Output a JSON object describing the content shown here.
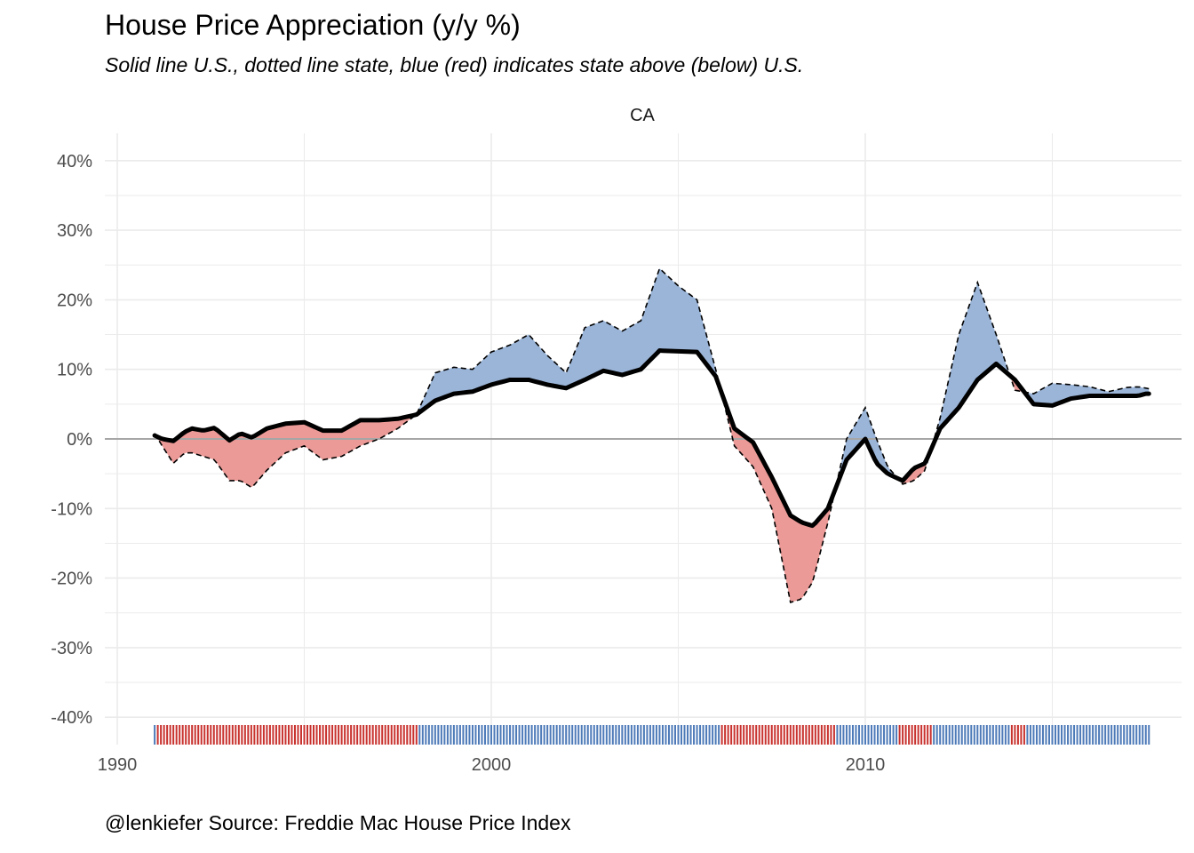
{
  "title": "House Price Appreciation (y/y %)",
  "subtitle": "Solid line U.S., dotted line state, blue (red) indicates state above (below) U.S.",
  "caption": "@lenkiefer Source: Freddie Mac House Price Index",
  "chart_data": {
    "type": "area",
    "facet": "CA",
    "ylim": [
      -40,
      40
    ],
    "xlim": [
      1990,
      2017.9
    ],
    "y_ticks": [
      -40,
      -30,
      -20,
      -10,
      0,
      10,
      20,
      30,
      40
    ],
    "y_tick_labels": [
      "-40%",
      "-30%",
      "-20%",
      "-10%",
      "0%",
      "10%",
      "20%",
      "30%",
      "40%"
    ],
    "x_ticks": [
      1990,
      2000,
      2010
    ],
    "x_tick_labels": [
      "1990",
      "2000",
      "2010"
    ],
    "colors": {
      "above": "#4d7ab8",
      "below": "#c8322e",
      "above_fill": "#9bb5d8",
      "below_fill": "#eb9a97",
      "us_line": "#000000",
      "zero_line": "#a6a6a6",
      "grid": "#ebebeb"
    },
    "x": [
      1991.0,
      1991.2,
      1991.5,
      1991.8,
      1992.0,
      1992.3,
      1992.6,
      1993.0,
      1993.3,
      1993.6,
      1994.0,
      1994.5,
      1995.0,
      1995.5,
      1996.0,
      1996.5,
      1997.0,
      1997.5,
      1998.0,
      1998.5,
      1999.0,
      1999.5,
      2000.0,
      2000.5,
      2001.0,
      2001.5,
      2002.0,
      2002.5,
      2003.0,
      2003.5,
      2004.0,
      2004.5,
      2005.0,
      2005.5,
      2006.0,
      2006.5,
      2007.0,
      2007.5,
      2008.0,
      2008.3,
      2008.6,
      2009.0,
      2009.5,
      2010.0,
      2010.3,
      2010.6,
      2011.0,
      2011.3,
      2011.6,
      2012.0,
      2012.5,
      2013.0,
      2013.5,
      2014.0,
      2014.5,
      2015.0,
      2015.5,
      2016.0,
      2016.5,
      2017.0,
      2017.3,
      2017.5,
      2017.6
    ],
    "series": [
      {
        "name": "U.S.",
        "values": [
          0.5,
          0,
          -0.3,
          1,
          1.5,
          1.2,
          1.6,
          -0.2,
          0.8,
          0.2,
          1.5,
          2.2,
          2.4,
          1.2,
          1.2,
          2.7,
          2.7,
          2.9,
          3.5,
          5.5,
          6.5,
          6.8,
          7.8,
          8.5,
          8.5,
          7.8,
          7.3,
          8.5,
          9.8,
          9.2,
          10.0,
          12.7,
          12.6,
          12.5,
          9.0,
          1.5,
          -0.5,
          -5.5,
          -11,
          -12,
          -12.5,
          -10,
          -3,
          0,
          -3.5,
          -5,
          -6,
          -4.2,
          -3.5,
          1.5,
          4.5,
          8.5,
          10.8,
          8.5,
          5,
          4.8,
          5.8,
          6.2,
          6.2,
          6.2,
          6.2,
          6.5,
          6.5
        ]
      },
      {
        "name": "CA",
        "values": [
          0.8,
          -1,
          -3.5,
          -2,
          -2,
          -2.5,
          -3,
          -6,
          -6,
          -7,
          -4.5,
          -2,
          -1,
          -3,
          -2.5,
          -1,
          0,
          1.5,
          3.5,
          9.5,
          10.3,
          10,
          12.5,
          13.5,
          15,
          12,
          9.5,
          16,
          17,
          15.5,
          17,
          24.5,
          22,
          20,
          10,
          -1,
          -4,
          -10,
          -23.5,
          -23,
          -20.5,
          -12,
          0,
          4.5,
          0,
          -4,
          -6.5,
          -6,
          -4.5,
          3,
          15,
          22.5,
          15,
          7,
          6.5,
          8,
          7.8,
          7.5,
          6.8,
          7.4,
          7.5,
          7.3,
          7.2
        ]
      }
    ]
  }
}
